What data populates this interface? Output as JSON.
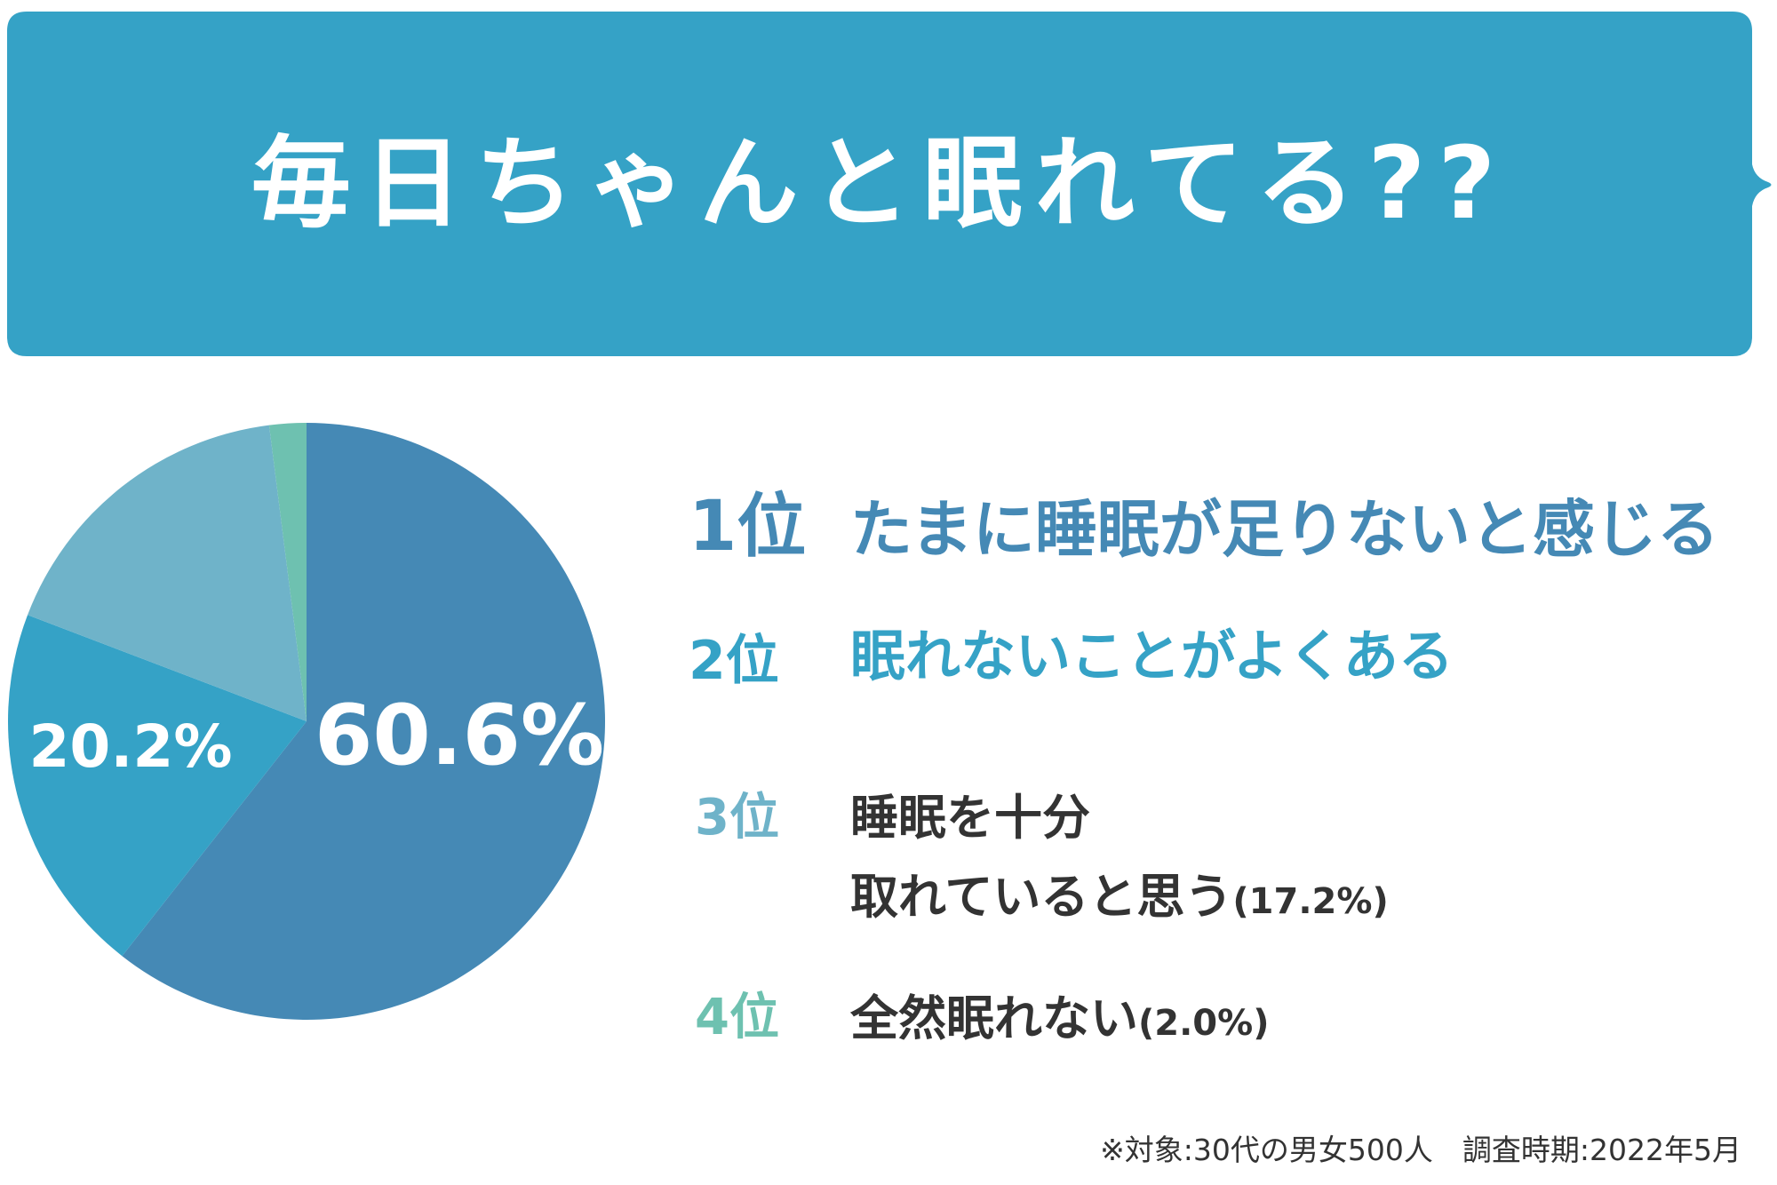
{
  "title": "毎日ちゃんと眠れてる??",
  "colors": {
    "banner": "#35a2c6",
    "text": "#333333"
  },
  "chart_data": {
    "type": "pie",
    "start": "top",
    "direction": "clockwise",
    "slices": [
      {
        "rank": "1位",
        "label": "たまに睡眠が足りないと感じる",
        "value": 60.6,
        "data_label": "60.6%",
        "color": "#4589b5"
      },
      {
        "rank": "2位",
        "label": "眠れないことがよくある",
        "value": 20.2,
        "data_label": "20.2%",
        "color": "#35a2c6"
      },
      {
        "rank": "3位",
        "label_line1": "睡眠を十分",
        "label_line2": "取れていると思う",
        "pct": "(17.2%)",
        "value": 17.2,
        "color": "#6fb3c9"
      },
      {
        "rank": "4位",
        "label": "全然眠れない",
        "pct": "(2.0%)",
        "value": 2.0,
        "color": "#6ec1b0"
      }
    ]
  },
  "footnote": "※対象:30代の男女500人　調査時期:2022年5月"
}
